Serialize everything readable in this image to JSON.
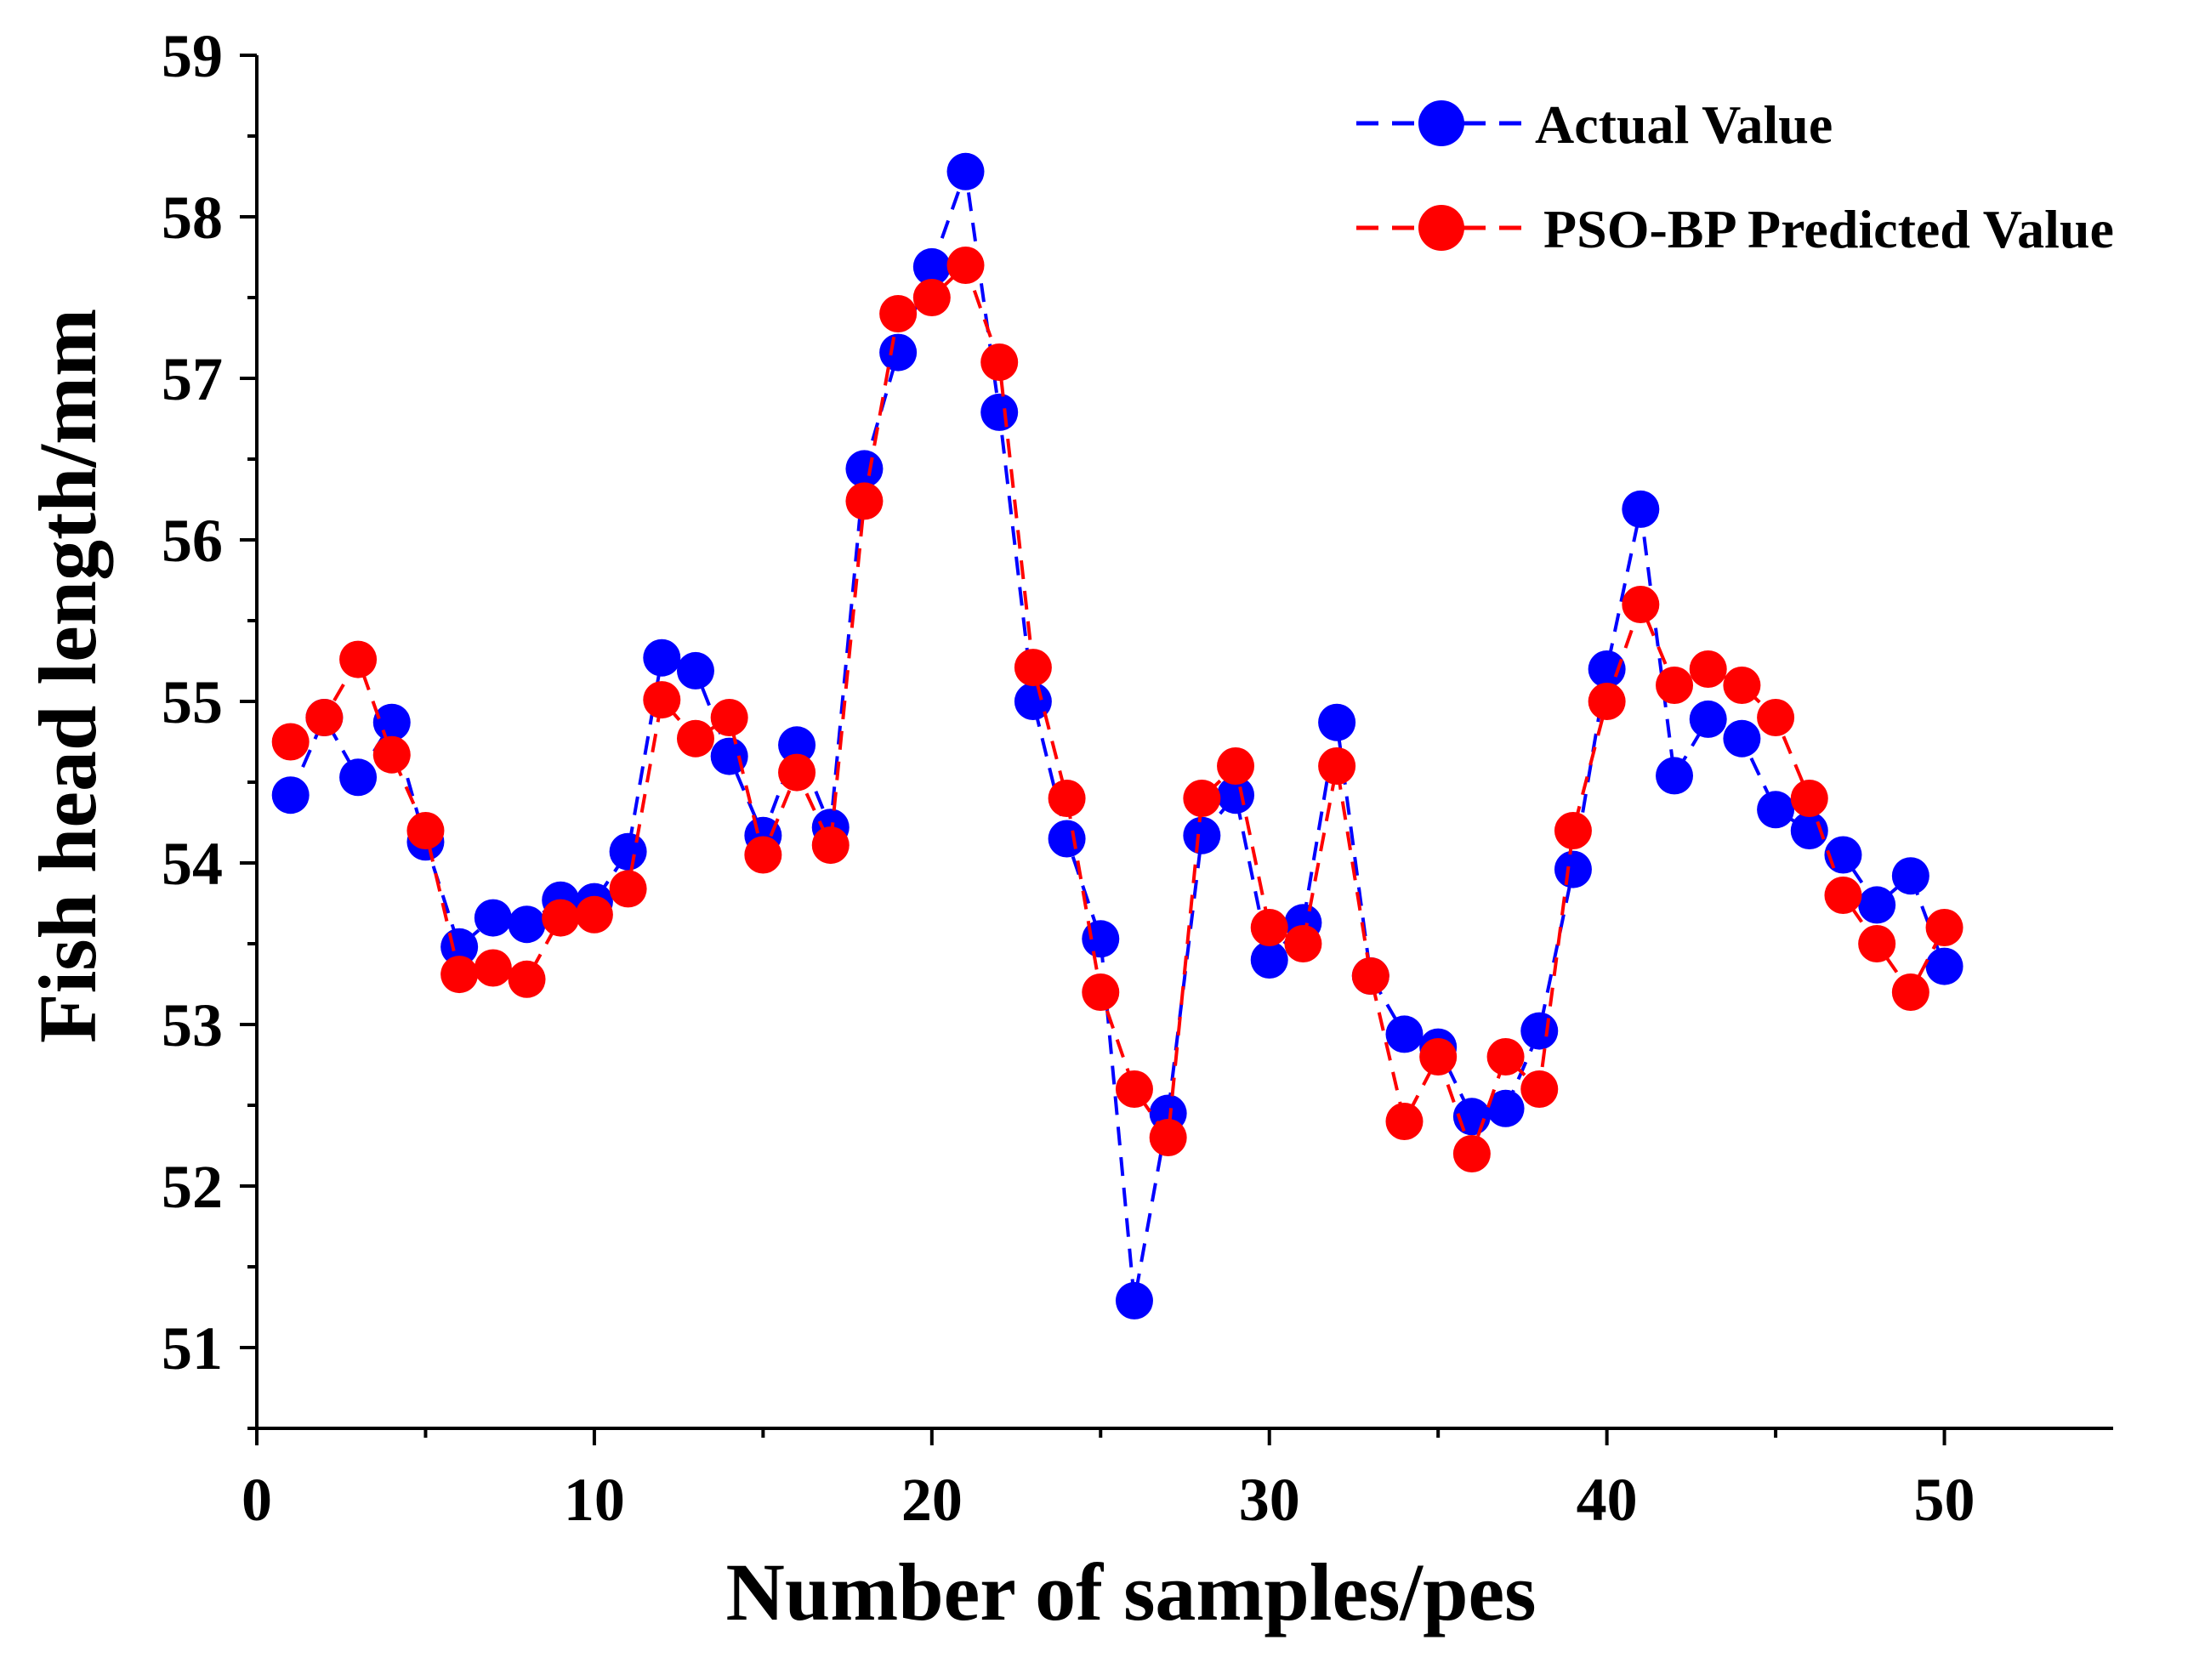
{
  "chart_data": {
    "type": "line",
    "title": "",
    "xlabel": "Number of samples/pes",
    "ylabel": "Fish head length/mm",
    "xlim": [
      0,
      55
    ],
    "ylim": [
      50.5,
      59
    ],
    "xticks": [
      0,
      10,
      20,
      30,
      40,
      50
    ],
    "yticks": [
      51,
      52,
      53,
      54,
      55,
      56,
      57,
      58,
      59
    ],
    "grid": false,
    "legend_position": "top-right",
    "x": [
      1,
      2,
      3,
      4,
      5,
      6,
      7,
      8,
      9,
      10,
      11,
      12,
      13,
      14,
      15,
      16,
      17,
      18,
      19,
      20,
      21,
      22,
      23,
      24,
      25,
      26,
      27,
      28,
      29,
      30,
      31,
      32,
      33,
      34,
      35,
      36,
      37,
      38,
      39,
      40,
      41,
      42,
      43,
      44,
      45,
      46,
      47,
      48,
      49,
      50
    ],
    "series": [
      {
        "name": "Actual Value",
        "color": "#0000ff",
        "line_style": "dashed",
        "marker": "circle",
        "values": [
          54.42,
          54.9,
          54.53,
          54.87,
          54.13,
          53.48,
          53.66,
          53.62,
          53.77,
          53.76,
          54.07,
          55.27,
          55.19,
          54.66,
          54.17,
          54.73,
          54.22,
          56.44,
          57.16,
          57.69,
          58.28,
          56.79,
          55.0,
          54.15,
          53.53,
          51.29,
          52.45,
          54.17,
          54.42,
          53.4,
          53.63,
          54.87,
          53.3,
          52.94,
          52.86,
          52.43,
          52.48,
          52.96,
          53.96,
          55.2,
          56.19,
          54.54,
          54.89,
          54.77,
          54.33,
          54.2,
          54.05,
          53.74,
          53.92,
          53.36
        ]
      },
      {
        "name": "PSO-BP Predicted Value",
        "color": "#ff0000",
        "line_style": "dashed",
        "marker": "circle",
        "values": [
          54.75,
          54.9,
          55.26,
          54.67,
          54.2,
          53.31,
          53.35,
          53.28,
          53.66,
          53.68,
          53.84,
          55.01,
          54.77,
          54.9,
          54.05,
          54.56,
          54.11,
          56.24,
          57.4,
          57.5,
          57.7,
          57.1,
          55.21,
          54.4,
          53.2,
          52.6,
          52.3,
          54.4,
          54.6,
          53.6,
          53.5,
          54.6,
          53.3,
          52.4,
          52.8,
          52.2,
          52.8,
          52.6,
          54.2,
          55.0,
          55.6,
          55.1,
          55.2,
          55.1,
          54.9,
          54.4,
          53.8,
          53.5,
          53.2,
          53.6
        ]
      }
    ]
  }
}
